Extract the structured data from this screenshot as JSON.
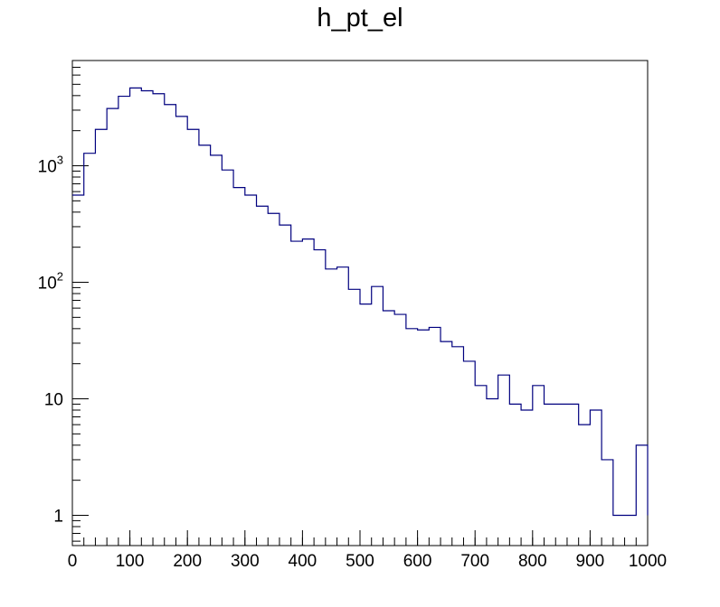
{
  "chart_data": {
    "type": "histogram",
    "title": "h_pt_el",
    "xlabel": "",
    "ylabel": "",
    "xlim": [
      0,
      1000
    ],
    "ylim": [
      0.55,
      8000
    ],
    "y_scale": "log",
    "bin_width": 20,
    "x_ticks": [
      "0",
      "100",
      "200",
      "300",
      "400",
      "500",
      "600",
      "700",
      "800",
      "900",
      "1000"
    ],
    "y_ticks": [
      {
        "value": 1,
        "label": "1"
      },
      {
        "value": 10,
        "label": "10"
      },
      {
        "value": 100,
        "label": "10",
        "exp": "2"
      },
      {
        "value": 1000,
        "label": "10",
        "exp": "3"
      }
    ],
    "line_color": "#00007f",
    "values": [
      560,
      1280,
      2050,
      3100,
      3950,
      4650,
      4400,
      4150,
      3350,
      2650,
      2050,
      1500,
      1230,
      920,
      650,
      560,
      450,
      390,
      310,
      225,
      235,
      190,
      130,
      135,
      87,
      65,
      92,
      57,
      53,
      40,
      39,
      41,
      31,
      28,
      21,
      13,
      10,
      16,
      9,
      8,
      13,
      9,
      9,
      9,
      6,
      8,
      3,
      1,
      1,
      4,
      1
    ]
  }
}
